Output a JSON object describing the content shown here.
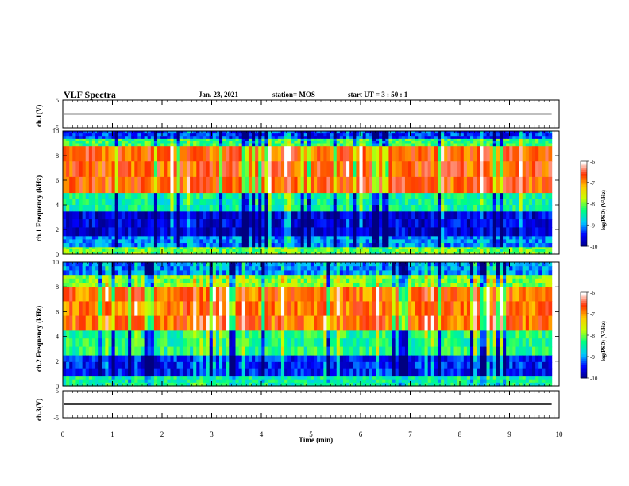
{
  "header": {
    "title": "VLF Spectra",
    "date": "Jan. 23, 2021",
    "station": "station= MOS",
    "start": "start UT =  3 : 50 : 1"
  },
  "chart_data": {
    "type": "heatmap",
    "xlabel": "Time (min)",
    "xlim": [
      0,
      10
    ],
    "x_ticks": [
      "0",
      "1",
      "2",
      "3",
      "4",
      "5",
      "6",
      "7",
      "8",
      "9",
      "10"
    ],
    "panels": [
      {
        "name": "ch.1(V)",
        "kind": "waveform",
        "ylim": [
          -5,
          5
        ],
        "y_ticks": [
          "5",
          "-5"
        ],
        "level": 0
      },
      {
        "name": "ch.1 Frequency (kHz)",
        "kind": "spectrogram",
        "ylim": [
          0,
          10
        ],
        "y_ticks": [
          "0",
          "2",
          "4",
          "6",
          "8",
          "10"
        ],
        "colorbar": {
          "label": "log(PSD) (V²/Hz)",
          "range": [
            -10,
            -6
          ],
          "ticks": [
            "-6",
            "-7",
            "-8",
            "-9",
            "-10"
          ]
        },
        "bands": [
          {
            "f": [
              0.0,
              0.6
            ],
            "logpsd": -8.0
          },
          {
            "f": [
              0.6,
              1.5
            ],
            "logpsd": -9.0
          },
          {
            "f": [
              1.5,
              3.5
            ],
            "logpsd": -9.6
          },
          {
            "f": [
              3.5,
              5.0
            ],
            "logpsd": -8.4
          },
          {
            "f": [
              5.0,
              8.8
            ],
            "logpsd": -6.7
          },
          {
            "f": [
              8.8,
              9.4
            ],
            "logpsd": -8.2
          },
          {
            "f": [
              9.4,
              10.0
            ],
            "logpsd": -9.3
          }
        ]
      },
      {
        "name": "ch.2 Frequency (kHz)",
        "kind": "spectrogram",
        "ylim": [
          0,
          10
        ],
        "y_ticks": [
          "0",
          "2",
          "4",
          "6",
          "8",
          "10"
        ],
        "colorbar": {
          "label": "log(PSD) (V²/Hz)",
          "range": [
            -10,
            -6
          ],
          "ticks": [
            "-6",
            "-7",
            "-8",
            "-9",
            "-10"
          ]
        },
        "bands": [
          {
            "f": [
              0.0,
              0.8
            ],
            "logpsd": -8.4
          },
          {
            "f": [
              0.8,
              2.5
            ],
            "logpsd": -9.4
          },
          {
            "f": [
              2.5,
              4.5
            ],
            "logpsd": -8.3
          },
          {
            "f": [
              4.5,
              8.0
            ],
            "logpsd": -6.8
          },
          {
            "f": [
              8.0,
              9.0
            ],
            "logpsd": -7.9
          },
          {
            "f": [
              9.0,
              10.0
            ],
            "logpsd": -9.0
          }
        ]
      },
      {
        "name": "ch.3(V)",
        "kind": "waveform",
        "ylim": [
          -5,
          5
        ],
        "y_ticks": [
          "5",
          "-5"
        ],
        "level": 0
      }
    ],
    "data_extent_min": 9.85,
    "colormap": [
      "#000080",
      "#0000ff",
      "#00c8ff",
      "#00ff80",
      "#c8ff00",
      "#ffc800",
      "#ff3000",
      "#ffffff"
    ]
  }
}
